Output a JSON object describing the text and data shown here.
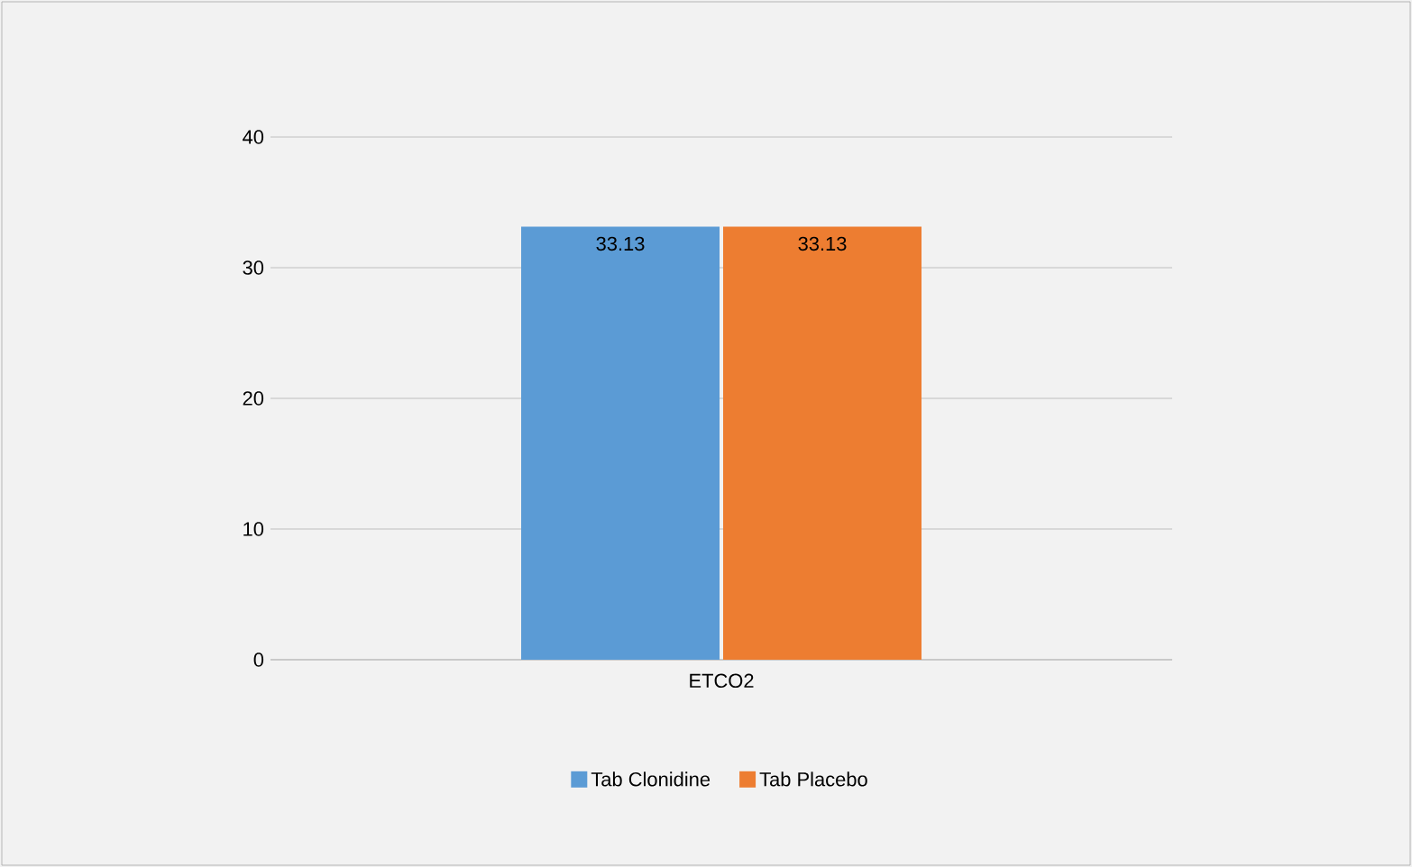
{
  "chart_data": {
    "type": "bar",
    "categories": [
      "ETCO2"
    ],
    "series": [
      {
        "name": "Tab Clonidine",
        "color": "#5b9bd5",
        "values": [
          33.13
        ],
        "value_labels": [
          "33.13"
        ]
      },
      {
        "name": "Tab Placebo",
        "color": "#ed7d31",
        "values": [
          33.13
        ],
        "value_labels": [
          "33.13"
        ]
      }
    ],
    "ylim": [
      0,
      40
    ],
    "yticks": [
      0,
      10,
      20,
      30,
      40
    ],
    "grid": "y",
    "legend": "bottom"
  }
}
